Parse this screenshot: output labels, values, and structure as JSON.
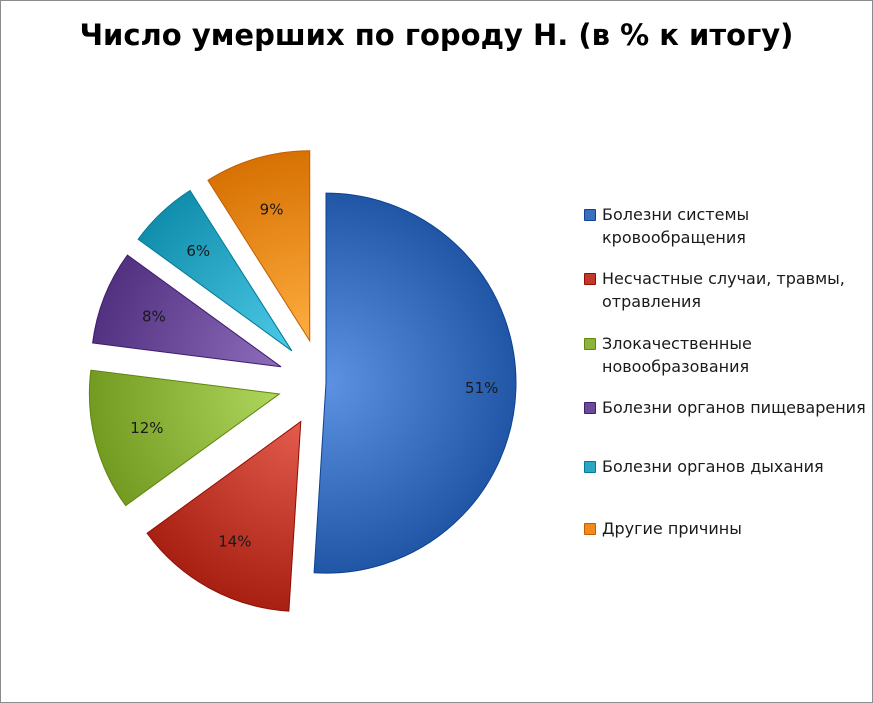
{
  "chart_data": {
    "type": "pie",
    "title": "Число умерших по городу Н. (в % к итогу)",
    "legend_position": "right",
    "slices": [
      {
        "label": "Болезни системы кровообращения",
        "value": 51,
        "value_label": "51%",
        "color": "#3a6fbf"
      },
      {
        "label": "Несчастные случаи, травмы, отравления",
        "value": 14,
        "value_label": "14%",
        "color": "#c0392b"
      },
      {
        "label": "Злокачественные новообразования",
        "value": 12,
        "value_label": "12%",
        "color": "#8cb33a"
      },
      {
        "label": "Болезни органов пищеварения",
        "value": 8,
        "value_label": "8%",
        "color": "#6b4a99"
      },
      {
        "label": "Болезни органов дыхания",
        "value": 6,
        "value_label": "6%",
        "color": "#2aa7c4"
      },
      {
        "label": "Другие причины",
        "value": 9,
        "value_label": "9%",
        "color": "#f08a1c"
      }
    ]
  }
}
